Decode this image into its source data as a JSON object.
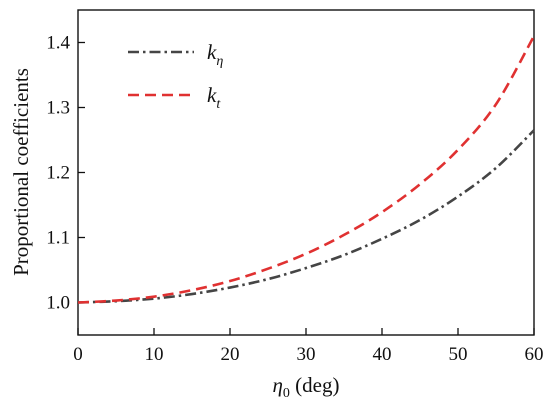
{
  "chart_data": {
    "type": "line",
    "xlabel": "η0 (deg)",
    "xlabel_parts": {
      "symbol": "η",
      "subscript": "0",
      "unit": " (deg)"
    },
    "ylabel": "Proportional coefficients",
    "xlim": [
      0,
      60
    ],
    "ylim": [
      0.95,
      1.45
    ],
    "xticks": [
      0,
      10,
      20,
      30,
      40,
      50,
      60
    ],
    "yticks": [
      1.0,
      1.1,
      1.2,
      1.3,
      1.4
    ],
    "xtick_labels": [
      "0",
      "10",
      "20",
      "30",
      "40",
      "50",
      "60"
    ],
    "ytick_labels": [
      "1.0",
      "1.1",
      "1.2",
      "1.3",
      "1.4"
    ],
    "grid": false,
    "legend_position": "top-left",
    "x": [
      0,
      5,
      10,
      15,
      20,
      25,
      30,
      35,
      40,
      45,
      50,
      55,
      60
    ],
    "series": [
      {
        "name": "kη",
        "name_parts": {
          "base": "k",
          "sub": "η"
        },
        "color": "#454545",
        "dash": "dash-dot",
        "values": [
          1.0,
          1.002,
          1.006,
          1.013,
          1.023,
          1.036,
          1.053,
          1.073,
          1.098,
          1.127,
          1.163,
          1.207,
          1.265
        ]
      },
      {
        "name": "kt",
        "name_parts": {
          "base": "k",
          "sub": "t"
        },
        "color": "#e03131",
        "dash": "dashed",
        "values": [
          1.0,
          1.003,
          1.009,
          1.019,
          1.033,
          1.052,
          1.075,
          1.104,
          1.139,
          1.182,
          1.235,
          1.305,
          1.41
        ]
      }
    ]
  }
}
